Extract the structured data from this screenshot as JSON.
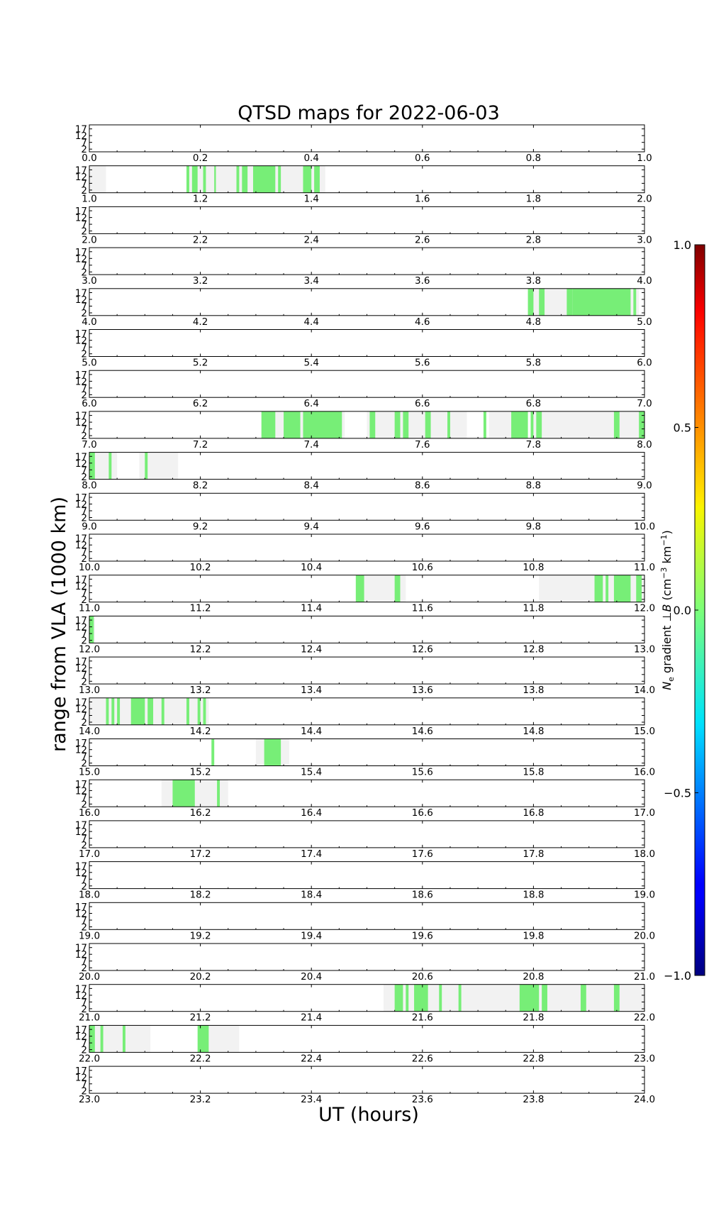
{
  "chart_data": {
    "type": "heatmap",
    "title": "QTSD maps for 2022-06-03",
    "xlabel": "UT (hours)",
    "ylabel": "range from VLA (1000 km)",
    "xlim": [
      0,
      24
    ],
    "ylim": [
      0,
      20
    ],
    "ytick_labels": [
      "2",
      "7",
      "12",
      "17"
    ],
    "panel_hours": 1,
    "panel_count": 24,
    "xtick_step": 0.2,
    "colorbar": {
      "label_main": "N",
      "label_sub": "e",
      "label_rest": " gradient ⊥",
      "label_vec": "B",
      "label_units": " (cm",
      "label_units_exp": "−3",
      "label_units_km": " km",
      "label_units_km_exp": "−1",
      "label_close": ")",
      "ticks": [
        "1.0",
        "0.5",
        "0.0",
        "−0.5",
        "−1.0"
      ],
      "tick_values": [
        1.0,
        0.5,
        0.0,
        -0.5,
        -1.0
      ],
      "range": [
        -1.0,
        1.0
      ],
      "colormap": "jet"
    },
    "colors": {
      "coverage": "#f2f2f2",
      "detection": "#77ee77"
    },
    "coverage_intervals_ut": [
      [
        0.0,
        0.0
      ],
      [
        1.0,
        1.03
      ],
      [
        1.175,
        1.425
      ],
      [
        4.79,
        4.99
      ],
      [
        7.31,
        7.46
      ],
      [
        7.5,
        7.68
      ],
      [
        7.72,
        7.77
      ],
      [
        7.8,
        8.0
      ],
      [
        8.0,
        8.05
      ],
      [
        8.09,
        8.16
      ],
      [
        11.48,
        11.57
      ],
      [
        11.81,
        12.0
      ],
      [
        12.0,
        12.01
      ],
      [
        14.0,
        14.215
      ],
      [
        15.3,
        15.36
      ],
      [
        16.13,
        16.25
      ],
      [
        21.53,
        22.0
      ],
      [
        22.0,
        22.11
      ],
      [
        22.2,
        22.27
      ]
    ],
    "detection_intervals_ut": [
      [
        1.175,
        1.18
      ],
      [
        1.185,
        1.195
      ],
      [
        1.205,
        1.21
      ],
      [
        1.225,
        1.228
      ],
      [
        1.265,
        1.27
      ],
      [
        1.275,
        1.285
      ],
      [
        1.295,
        1.335
      ],
      [
        1.34,
        1.345
      ],
      [
        1.385,
        1.4
      ],
      [
        1.405,
        1.415
      ],
      [
        4.79,
        4.8
      ],
      [
        4.81,
        4.82
      ],
      [
        4.86,
        4.87
      ],
      [
        4.87,
        4.975
      ],
      [
        4.98,
        4.985
      ],
      [
        7.31,
        7.335
      ],
      [
        7.35,
        7.38
      ],
      [
        7.385,
        7.455
      ],
      [
        7.505,
        7.515
      ],
      [
        7.55,
        7.56
      ],
      [
        7.565,
        7.575
      ],
      [
        7.605,
        7.615
      ],
      [
        7.645,
        7.65
      ],
      [
        7.71,
        7.715
      ],
      [
        7.76,
        7.79
      ],
      [
        7.795,
        7.8
      ],
      [
        7.805,
        7.815
      ],
      [
        7.945,
        7.955
      ],
      [
        7.99,
        8.0
      ],
      [
        8.0,
        8.01
      ],
      [
        8.035,
        8.04
      ],
      [
        8.1,
        8.105
      ],
      [
        11.48,
        11.495
      ],
      [
        11.55,
        11.56
      ],
      [
        11.91,
        11.925
      ],
      [
        11.93,
        11.935
      ],
      [
        11.945,
        11.975
      ],
      [
        11.985,
        11.995
      ],
      [
        12.0,
        12.008
      ],
      [
        14.03,
        14.035
      ],
      [
        14.04,
        14.045
      ],
      [
        14.05,
        14.055
      ],
      [
        14.075,
        14.1
      ],
      [
        14.105,
        14.115
      ],
      [
        14.13,
        14.135
      ],
      [
        14.175,
        14.18
      ],
      [
        14.195,
        14.2
      ],
      [
        14.205,
        14.21
      ],
      [
        15.22,
        15.225
      ],
      [
        15.315,
        15.345
      ],
      [
        16.15,
        16.19
      ],
      [
        16.23,
        16.235
      ],
      [
        21.55,
        21.565
      ],
      [
        21.57,
        21.575
      ],
      [
        21.585,
        21.61
      ],
      [
        21.63,
        21.635
      ],
      [
        21.665,
        21.67
      ],
      [
        21.775,
        21.81
      ],
      [
        21.815,
        21.825
      ],
      [
        21.885,
        21.895
      ],
      [
        21.945,
        21.955
      ],
      [
        22.0,
        22.01
      ],
      [
        22.02,
        22.025
      ],
      [
        22.06,
        22.065
      ],
      [
        22.195,
        22.215
      ]
    ]
  }
}
